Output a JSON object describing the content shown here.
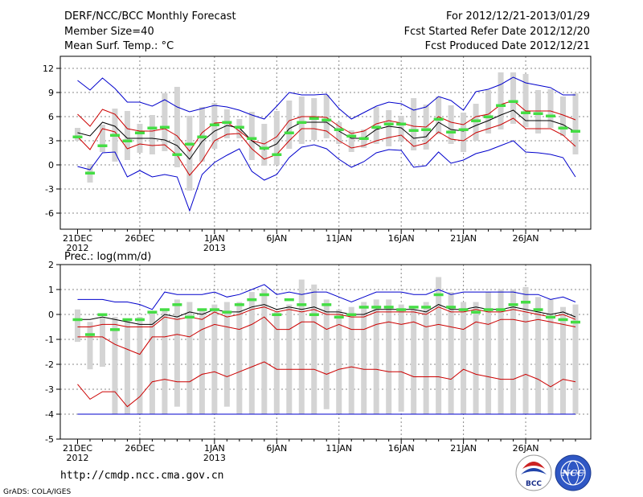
{
  "header": {
    "title": "DERF/NCC/BCC Monthly Forecast",
    "member_size": "Member Size=40",
    "variable": "Mean Surf. Temp.: °C",
    "period": "For 2012/12/21-2013/01/29",
    "start_date": "Fcst Started Refer Date 2012/12/20",
    "produced_date": "Fcst Produced Date 2012/12/21"
  },
  "footer": {
    "url": "http://cmdp.ncc.cma.gov.cn",
    "credit": "GrADS: COLA/IGES",
    "logo1_text": "BCC",
    "logo2_text": "NCC"
  },
  "colors": {
    "box": "#d4d4d4",
    "ens_mean": "#000000",
    "spread": "#cc0000",
    "extreme": "#0000cc",
    "obs_mark": "#44dd44",
    "grid": "#888888"
  },
  "chart_data": [
    {
      "type": "line",
      "title": "Mean Surf. Temp.: °C",
      "ylabel": "°C",
      "ylim": [
        -8,
        13.5
      ],
      "yticks": [
        12,
        9,
        6,
        3,
        0,
        -3,
        -6
      ],
      "x_day_range": [
        0,
        40
      ],
      "x_ticks": [
        {
          "day": 0,
          "label": "21DEC",
          "sub": "2012"
        },
        {
          "day": 5,
          "label": "26DEC",
          "sub": ""
        },
        {
          "day": 11,
          "label": "1JAN",
          "sub": "2013"
        },
        {
          "day": 16,
          "label": "6JAN",
          "sub": ""
        },
        {
          "day": 21,
          "label": "11JAN",
          "sub": ""
        },
        {
          "day": 26,
          "label": "16JAN",
          "sub": ""
        },
        {
          "day": 31,
          "label": "21JAN",
          "sub": ""
        },
        {
          "day": 36,
          "label": "26JAN",
          "sub": ""
        }
      ],
      "series": [
        {
          "name": "upper extreme",
          "color": "#0000cc",
          "values": [
            10.5,
            9.3,
            10.8,
            9.5,
            7.8,
            7.8,
            7.3,
            8.1,
            7.2,
            6.6,
            7.0,
            7.4,
            7.2,
            6.8,
            6.2,
            5.7,
            7.3,
            9.0,
            8.7,
            8.7,
            8.8,
            7.0,
            5.7,
            6.5,
            7.3,
            7.8,
            7.6,
            6.8,
            7.2,
            8.5,
            8.0,
            6.8,
            9.1,
            9.4,
            10.0,
            10.9,
            10.2,
            9.9,
            9.6,
            8.7,
            8.7
          ]
        },
        {
          "name": "upper spread",
          "color": "#cc0000",
          "values": [
            6.3,
            4.8,
            6.9,
            6.3,
            4.5,
            4.2,
            4.2,
            4.5,
            3.6,
            1.7,
            4.0,
            5.2,
            5.3,
            4.2,
            3.0,
            2.6,
            3.5,
            5.5,
            6.0,
            6.0,
            5.9,
            4.8,
            3.9,
            4.2,
            5.1,
            5.5,
            5.2,
            4.8,
            4.7,
            6.0,
            5.3,
            5.0,
            6.0,
            6.3,
            7.5,
            8.0,
            6.7,
            6.7,
            6.7,
            6.2,
            5.6
          ]
        },
        {
          "name": "ensemble mean",
          "color": "#000000",
          "values": [
            4.0,
            3.6,
            5.3,
            4.8,
            3.3,
            3.3,
            3.3,
            3.1,
            2.4,
            0.7,
            2.9,
            4.2,
            4.9,
            4.6,
            3.0,
            1.9,
            2.6,
            4.5,
            5.3,
            5.3,
            5.3,
            4.2,
            3.3,
            3.3,
            4.4,
            4.8,
            4.6,
            3.3,
            3.5,
            5.3,
            4.4,
            4.2,
            4.9,
            5.5,
            6.2,
            6.8,
            5.5,
            5.5,
            5.5,
            5.0,
            4.1
          ]
        },
        {
          "name": "lower spread",
          "color": "#cc0000",
          "values": [
            3.5,
            1.9,
            4.5,
            4.1,
            2.0,
            2.6,
            2.4,
            2.5,
            1.2,
            -1.3,
            0.5,
            3.0,
            3.8,
            3.9,
            2.0,
            0.7,
            1.3,
            3.0,
            4.5,
            4.5,
            4.2,
            3.0,
            2.1,
            2.4,
            3.0,
            3.4,
            3.7,
            2.3,
            2.7,
            4.1,
            3.2,
            3.0,
            4.0,
            4.5,
            5.0,
            5.8,
            4.5,
            4.5,
            4.5,
            3.7,
            2.3
          ]
        },
        {
          "name": "lower extreme",
          "color": "#0000cc",
          "values": [
            -0.2,
            -0.6,
            1.5,
            1.6,
            -1.5,
            -0.7,
            -1.5,
            -1.2,
            -1.5,
            -5.7,
            -1.2,
            0.3,
            1.2,
            2.0,
            -0.8,
            -1.9,
            -1.2,
            0.9,
            2.2,
            2.5,
            2.0,
            0.7,
            -0.3,
            0.4,
            1.5,
            1.9,
            1.8,
            -0.3,
            -0.1,
            1.6,
            0.2,
            0.6,
            1.4,
            1.8,
            2.4,
            3.0,
            1.6,
            1.5,
            1.3,
            0.9,
            -1.5
          ]
        }
      ],
      "boxes_low": [
        3.0,
        -2.2,
        1.6,
        0.4,
        0.6,
        1.5,
        1.3,
        1.7,
        -0.3,
        -3.2,
        0.4,
        2.0,
        3.3,
        3.3,
        0.6,
        -0.1,
        0.0,
        2.0,
        2.6,
        3.1,
        3.3,
        2.6,
        1.6,
        2.1,
        2.6,
        2.3,
        3.0,
        1.8,
        1.9,
        3.8,
        2.6,
        1.6,
        3.0,
        3.9,
        4.4,
        5.1,
        4.7,
        3.9,
        4.6,
        3.6,
        1.3
      ],
      "boxes_high": [
        4.6,
        0.1,
        5.0,
        7.0,
        6.7,
        5.1,
        6.2,
        8.9,
        9.7,
        6.1,
        7.2,
        7.7,
        6.9,
        5.7,
        6.6,
        5.1,
        6.7,
        8.0,
        8.5,
        8.3,
        8.7,
        5.3,
        4.3,
        4.4,
        7.2,
        6.8,
        6.1,
        8.3,
        7.5,
        8.5,
        7.4,
        6.5,
        7.6,
        9.3,
        11.5,
        11.5,
        11.3,
        9.3,
        9.4,
        8.5,
        8.9
      ],
      "obs": [
        3.5,
        -1.0,
        2.4,
        3.7,
        3.0,
        4.0,
        4.6,
        4.7,
        1.3,
        2.6,
        3.5,
        5.0,
        5.3,
        4.7,
        3.3,
        2.1,
        1.3,
        4.0,
        5.3,
        5.8,
        5.6,
        4.4,
        3.6,
        3.3,
        4.7,
        5.1,
        5.1,
        4.3,
        4.4,
        5.7,
        4.1,
        4.4,
        5.5,
        6.0,
        7.4,
        7.9,
        6.5,
        6.4,
        6.1,
        4.6,
        4.2
      ]
    },
    {
      "type": "line",
      "title": "Prec.: log(mm/d)",
      "ylabel": "log(mm/d)",
      "ylim": [
        -5,
        2
      ],
      "yticks": [
        2,
        1,
        0,
        -1,
        -2,
        -3,
        -4,
        -5
      ],
      "x_day_range": [
        0,
        40
      ],
      "x_ticks": [
        {
          "day": 0,
          "label": "21DEC",
          "sub": "2012"
        },
        {
          "day": 5,
          "label": "26DEC",
          "sub": ""
        },
        {
          "day": 11,
          "label": "1JAN",
          "sub": "2013"
        },
        {
          "day": 16,
          "label": "6JAN",
          "sub": ""
        },
        {
          "day": 21,
          "label": "11JAN",
          "sub": ""
        },
        {
          "day": 26,
          "label": "16JAN",
          "sub": ""
        },
        {
          "day": 31,
          "label": "21JAN",
          "sub": ""
        },
        {
          "day": 36,
          "label": "26JAN",
          "sub": ""
        }
      ],
      "series": [
        {
          "name": "upper extreme",
          "color": "#0000cc",
          "values": [
            0.6,
            0.6,
            0.6,
            0.5,
            0.5,
            0.4,
            0.2,
            0.9,
            0.8,
            0.8,
            0.8,
            0.9,
            0.7,
            0.8,
            1.0,
            1.2,
            0.8,
            0.9,
            0.8,
            0.9,
            0.9,
            0.7,
            0.5,
            0.7,
            0.9,
            0.9,
            0.9,
            0.8,
            0.8,
            1.0,
            0.8,
            0.9,
            0.9,
            0.9,
            0.9,
            0.9,
            0.8,
            0.8,
            0.6,
            0.7,
            0.5
          ]
        },
        {
          "name": "upper spread",
          "color": "#cc0000",
          "values": [
            -0.5,
            -0.5,
            -0.4,
            -0.4,
            -0.5,
            -0.5,
            -0.5,
            -0.1,
            -0.2,
            -0.1,
            -0.2,
            0.1,
            -0.1,
            0.0,
            0.2,
            0.3,
            0.1,
            0.2,
            0.1,
            0.2,
            0.0,
            0.0,
            -0.1,
            -0.1,
            0.1,
            0.1,
            0.1,
            0.1,
            0.0,
            0.3,
            0.1,
            0.1,
            0.2,
            0.1,
            0.1,
            0.2,
            0.1,
            0.0,
            -0.1,
            0.0,
            -0.2
          ]
        },
        {
          "name": "ensemble mean",
          "color": "#000000",
          "values": [
            -0.2,
            -0.2,
            -0.1,
            -0.2,
            -0.3,
            -0.4,
            -0.4,
            0.0,
            -0.1,
            0.1,
            0.0,
            0.2,
            0.1,
            0.1,
            0.3,
            0.4,
            0.2,
            0.3,
            0.2,
            0.3,
            0.1,
            0.1,
            0.0,
            0.0,
            0.2,
            0.2,
            0.2,
            0.2,
            0.1,
            0.4,
            0.2,
            0.2,
            0.3,
            0.2,
            0.2,
            0.3,
            0.2,
            0.1,
            0.0,
            0.1,
            -0.1
          ]
        },
        {
          "name": "lower spread",
          "color": "#cc0000",
          "values": [
            -0.9,
            -0.9,
            -0.9,
            -1.2,
            -1.4,
            -1.6,
            -0.9,
            -0.9,
            -0.8,
            -0.9,
            -0.6,
            -0.4,
            -0.5,
            -0.6,
            -0.4,
            -0.1,
            -0.6,
            -0.6,
            -0.3,
            -0.3,
            -0.6,
            -0.4,
            -0.6,
            -0.6,
            -0.4,
            -0.3,
            -0.4,
            -0.3,
            -0.5,
            -0.4,
            -0.5,
            -0.6,
            -0.3,
            -0.4,
            -0.2,
            -0.2,
            -0.3,
            -0.2,
            -0.3,
            -0.4,
            -0.5
          ]
        },
        {
          "name": "lower extreme",
          "color": "#cc0000",
          "values": [
            -2.8,
            -3.4,
            -3.1,
            -3.1,
            -3.7,
            -3.3,
            -2.7,
            -2.6,
            -2.7,
            -2.7,
            -2.4,
            -2.3,
            -2.5,
            -2.3,
            -2.1,
            -1.9,
            -2.2,
            -2.2,
            -2.2,
            -2.2,
            -2.4,
            -2.2,
            -2.1,
            -2.2,
            -2.2,
            -2.3,
            -2.3,
            -2.5,
            -2.5,
            -2.5,
            -2.6,
            -2.2,
            -2.4,
            -2.5,
            -2.6,
            -2.6,
            -2.4,
            -2.6,
            -2.9,
            -2.6,
            -2.7
          ]
        },
        {
          "name": "floor",
          "color": "#0000cc",
          "values": [
            -4,
            -4,
            -4,
            -4,
            -4,
            -4,
            -4,
            -4,
            -4,
            -4,
            -4,
            -4,
            -4,
            -4,
            -4,
            -4,
            -4,
            -4,
            -4,
            -4,
            -4,
            -4,
            -4,
            -4,
            -4,
            -4,
            -4,
            -4,
            -4,
            -4,
            -4,
            -4,
            -4,
            -4,
            -4,
            -4,
            -4,
            -4,
            -4,
            -4,
            -4
          ]
        }
      ],
      "boxes_low": [
        -1.1,
        -2.2,
        -2.1,
        -4.0,
        -4.0,
        -4.0,
        -4.0,
        -4.0,
        -3.7,
        -4.0,
        -4.0,
        -4.0,
        -3.7,
        -4.0,
        -4.0,
        -4.0,
        -4.0,
        -4.0,
        -4.0,
        -4.0,
        -3.8,
        -4.0,
        -4.0,
        -4.0,
        -4.0,
        -4.0,
        -3.9,
        -4.0,
        -4.0,
        -4.0,
        -4.0,
        -4.0,
        -4.0,
        -4.0,
        -4.0,
        -4.0,
        -4.0,
        -4.0,
        -4.0,
        -4.0,
        -4.0
      ],
      "boxes_high": [
        0.2,
        -0.3,
        -0.1,
        -0.1,
        -0.2,
        -0.1,
        0.1,
        0.2,
        0.6,
        0.5,
        0.2,
        0.4,
        0.5,
        0.5,
        0.9,
        1.0,
        0.1,
        0.4,
        1.4,
        1.2,
        0.6,
        0.2,
        0.3,
        0.5,
        0.6,
        0.6,
        0.4,
        0.2,
        0.5,
        1.5,
        0.9,
        0.5,
        0.5,
        0.9,
        1.0,
        1.0,
        1.1,
        0.7,
        0.6,
        0.3,
        0.4
      ],
      "obs": [
        -0.2,
        -0.8,
        0.0,
        -0.6,
        -0.2,
        -0.2,
        0.1,
        0.2,
        0.4,
        -0.1,
        0.2,
        0.2,
        0.1,
        0.4,
        0.6,
        0.8,
        0.0,
        0.6,
        0.4,
        0.0,
        0.4,
        -0.1,
        0.0,
        0.3,
        0.3,
        0.3,
        0.2,
        0.3,
        0.3,
        0.8,
        0.3,
        0.2,
        0.1,
        0.2,
        0.2,
        0.4,
        0.5,
        0.2,
        -0.1,
        -0.2,
        -0.3
      ]
    }
  ]
}
